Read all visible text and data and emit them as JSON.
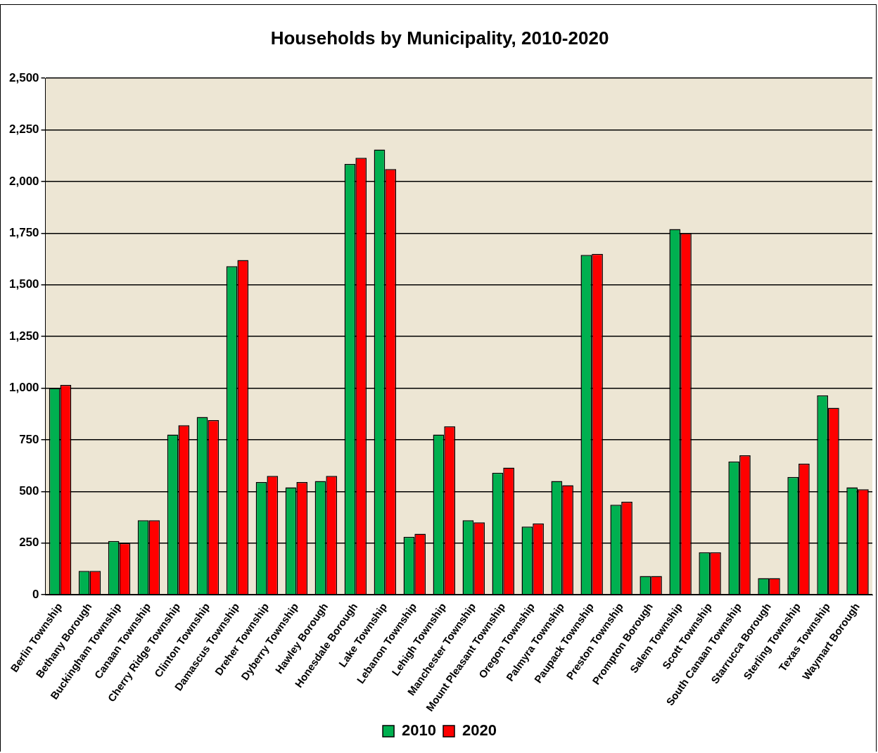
{
  "chart_data": {
    "type": "bar",
    "title": "Households by Municipality, 2010-2020",
    "categories": [
      "Berlin Township",
      "Bethany Borough",
      "Buckingham Township",
      "Canaan Township",
      "Cherry Ridge Township",
      "Clinton Township",
      "Damascus Township",
      "Dreher Township",
      "Dyberry Township",
      "Hawley Borough",
      "Honesdale Borough",
      "Lake Township",
      "Lebanon Township",
      "Lehigh Township",
      "Manchester Township",
      "Mount Pleasant Township",
      "Oregon Township",
      "Palmyra Township",
      "Paupack Township",
      "Preston Township",
      "Prompton Borough",
      "Salem Township",
      "Scott Township",
      "South Canaan Township",
      "Starrucca Borough",
      "Sterling Township",
      "Texas Township",
      "Waymart Borough"
    ],
    "series": [
      {
        "name": "2010",
        "color": "#00b050",
        "values": [
          1000,
          115,
          260,
          360,
          775,
          860,
          1590,
          545,
          520,
          550,
          2085,
          2155,
          280,
          775,
          360,
          590,
          330,
          550,
          1645,
          435,
          90,
          1770,
          205,
          645,
          80,
          570,
          965,
          520
        ]
      },
      {
        "name": "2020",
        "color": "#ff0000",
        "values": [
          1015,
          115,
          250,
          360,
          820,
          845,
          1620,
          575,
          545,
          575,
          2115,
          2060,
          295,
          815,
          350,
          615,
          345,
          530,
          1650,
          450,
          90,
          1750,
          205,
          675,
          80,
          635,
          905,
          510
        ]
      }
    ],
    "ylim": [
      0,
      2500
    ],
    "yticks": [
      {
        "value": 0,
        "label": "0"
      },
      {
        "value": 250,
        "label": "250"
      },
      {
        "value": 500,
        "label": "500"
      },
      {
        "value": 750,
        "label": "750"
      },
      {
        "value": 1000,
        "label": "1,000"
      },
      {
        "value": 1250,
        "label": "1,250"
      },
      {
        "value": 1500,
        "label": "1,500"
      },
      {
        "value": 1750,
        "label": "1,750"
      },
      {
        "value": 2000,
        "label": "2,000"
      },
      {
        "value": 2250,
        "label": "2,250"
      },
      {
        "value": 2500,
        "label": "2,500"
      }
    ],
    "grid": "y",
    "legend": "bottom"
  }
}
